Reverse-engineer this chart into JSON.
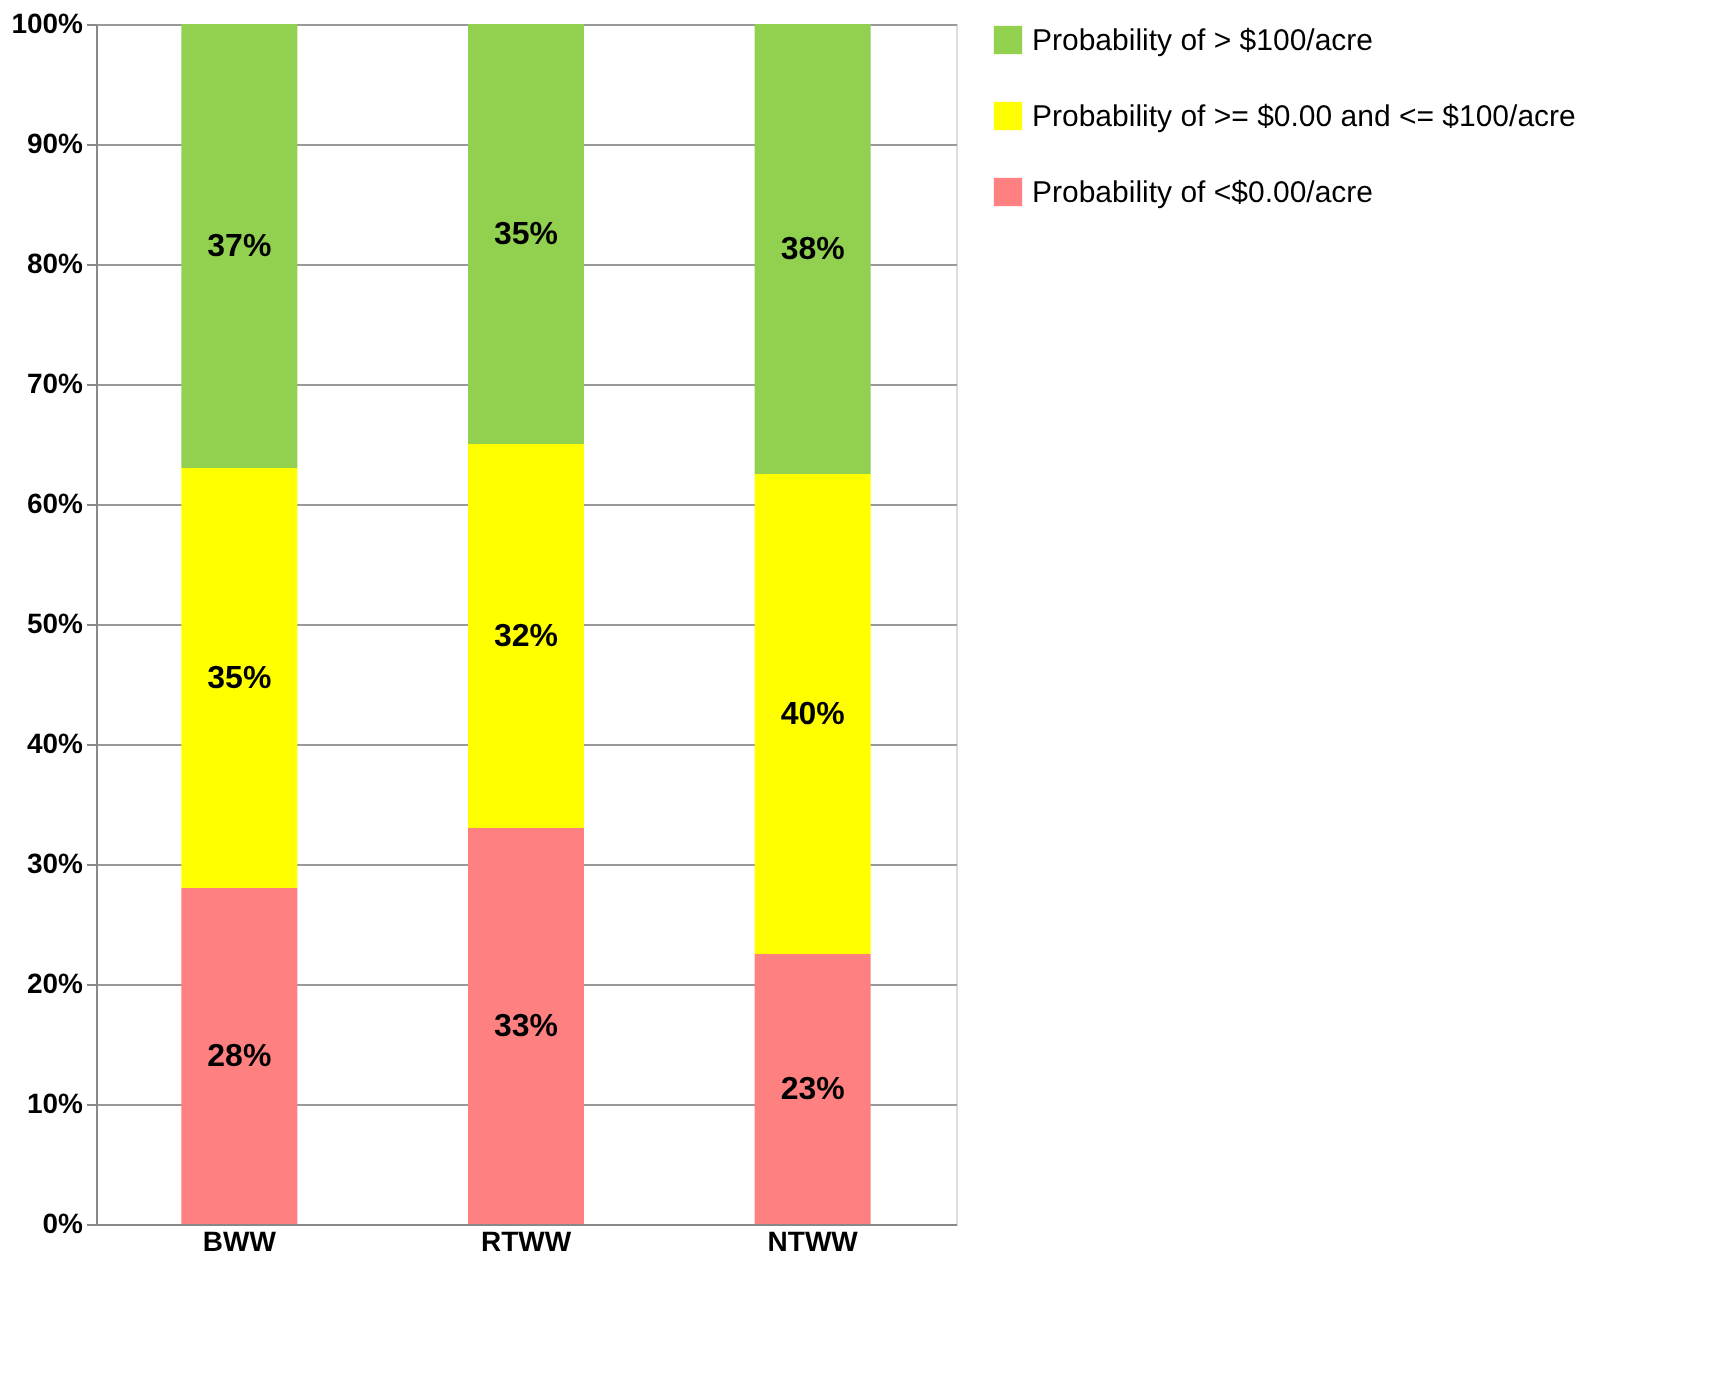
{
  "chart_data": {
    "type": "bar",
    "stacked": true,
    "categories": [
      "BWW",
      "RTWW",
      "NTWW"
    ],
    "series": [
      {
        "name": "Probability of <$0.00/acre",
        "color": "#ff8080",
        "values": [
          28,
          33,
          22.5
        ],
        "value_labels": [
          "28%",
          "33%",
          "23%"
        ]
      },
      {
        "name": "Probability of >= $0.00 and <= $100/acre",
        "color": "#ffff00",
        "values": [
          35,
          32,
          40
        ],
        "value_labels": [
          "35%",
          "32%",
          "40%"
        ]
      },
      {
        "name": "Probability of > $100/acre",
        "color": "#92d050",
        "values": [
          37,
          35,
          37.5
        ],
        "value_labels": [
          "37%",
          "35%",
          "38%"
        ]
      }
    ],
    "ylim": [
      0,
      100
    ],
    "yticks": [
      {
        "value": 0,
        "label": "0%"
      },
      {
        "value": 10,
        "label": "10%"
      },
      {
        "value": 20,
        "label": "20%"
      },
      {
        "value": 30,
        "label": "30%"
      },
      {
        "value": 40,
        "label": "40%"
      },
      {
        "value": 50,
        "label": "50%"
      },
      {
        "value": 60,
        "label": "60%"
      },
      {
        "value": 70,
        "label": "70%"
      },
      {
        "value": 80,
        "label": "80%"
      },
      {
        "value": 90,
        "label": "90%"
      },
      {
        "value": 100,
        "label": "100%"
      }
    ],
    "grid": "y",
    "legend": "right"
  }
}
